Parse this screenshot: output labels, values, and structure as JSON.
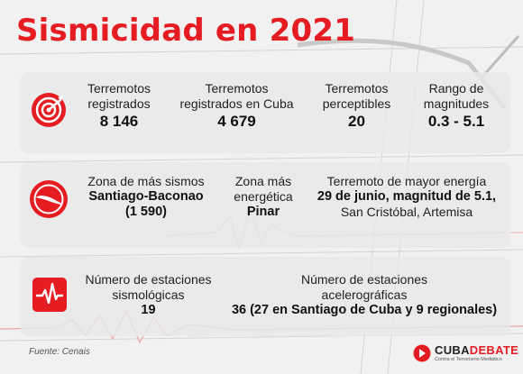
{
  "title": "Sismicidad en 2021",
  "colors": {
    "accent": "#e51d23",
    "panel": "#e8e8e8"
  },
  "row1": {
    "icon": "target-icon",
    "terremotos_registrados": {
      "label_1": "Terremotos",
      "label_2": "registrados",
      "value": "8 146"
    },
    "registrados_cuba": {
      "label_1": "Terremotos",
      "label_2": "registrados en Cuba",
      "value": "4 679"
    },
    "perceptibles": {
      "label_1": "Terremotos",
      "label_2": "perceptibles",
      "value": "20"
    },
    "rango": {
      "label_1": "Rango de",
      "label_2": "magnitudes",
      "value": "0.3 - 5.1"
    }
  },
  "row2": {
    "icon": "cuba-map-icon",
    "zona_sismos": {
      "label": "Zona de más sismos",
      "value": "Santiago-Baconao",
      "count": "(1 590)"
    },
    "zona_energetica": {
      "label_1": "Zona más",
      "label_2": "energética",
      "value": "Pinar"
    },
    "mayor_energia": {
      "label": "Terremoto de mayor energía",
      "value": "29 de junio, magnitud de 5.1,",
      "place": "San Cristóbal, Artemisa"
    }
  },
  "row3": {
    "icon": "seismograph-icon",
    "estaciones_sismo": {
      "label_1": "Número de estaciones",
      "label_2": "sismológicas",
      "value": "19"
    },
    "estaciones_acel": {
      "label_1": "Número de estaciones",
      "label_2": "acelerográficas",
      "value": "36 (27 en Santiago de Cuba y 9 regionales)"
    }
  },
  "source": "Fuente: Cenais",
  "logo": {
    "word_dark": "CUBA",
    "word_red": "DEBATE",
    "tagline": "Contra el Terrorismo Mediático"
  }
}
